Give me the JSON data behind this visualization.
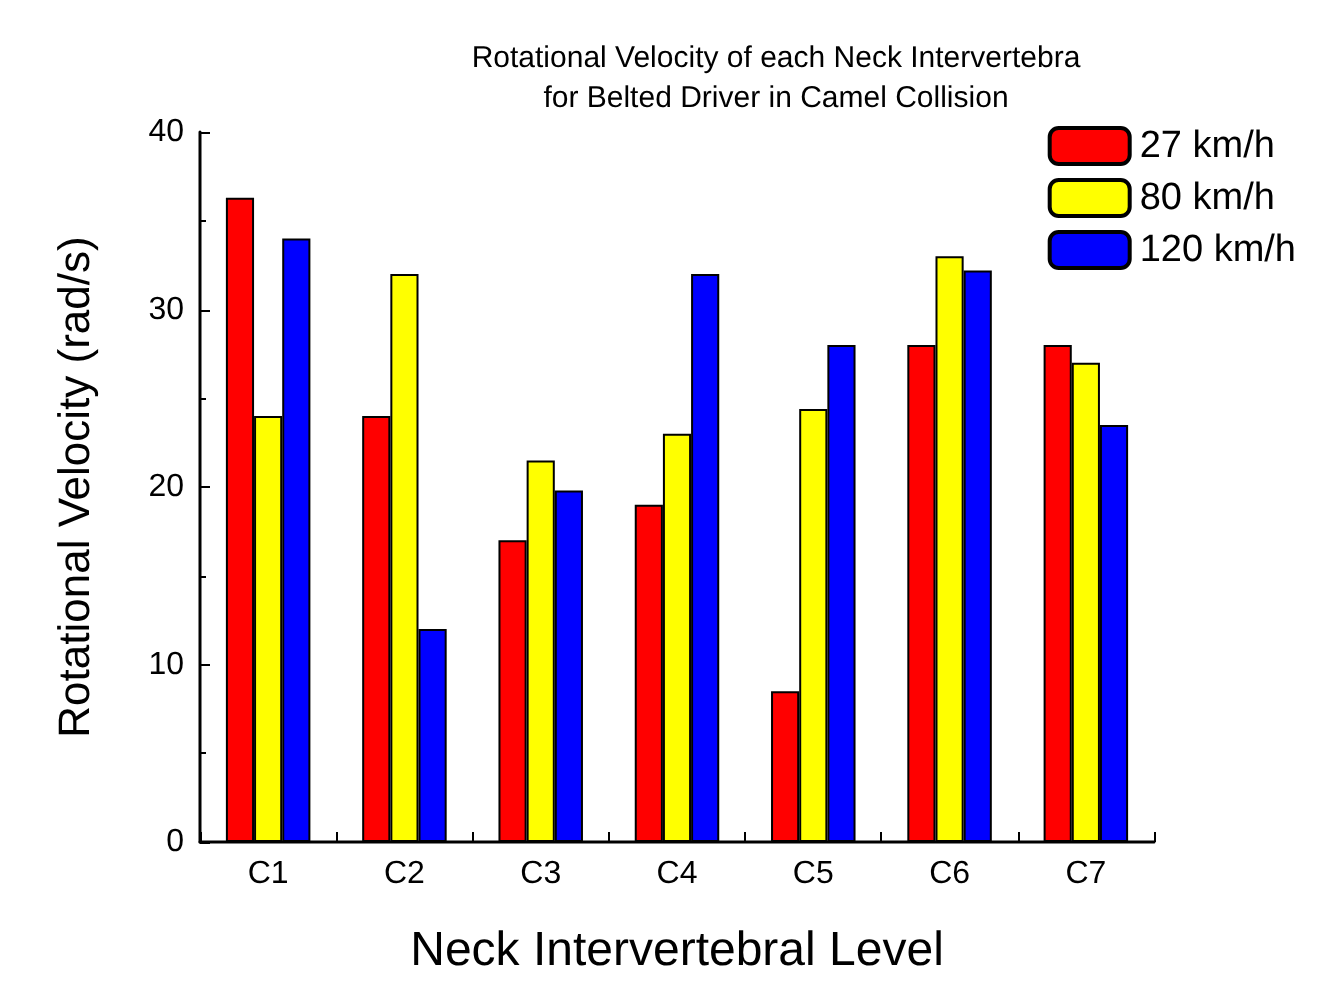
{
  "chart_data": {
    "type": "bar",
    "title": "Rotational Velocity of each Neck Intervertebra\nfor Belted Driver in Camel Collision",
    "xlabel": "Neck Intervertebral Level",
    "ylabel": "Rotational Velocity (rad/s)",
    "categories": [
      "C1",
      "C2",
      "C3",
      "C4",
      "C5",
      "C6",
      "C7"
    ],
    "series": [
      {
        "name": "27 km/h",
        "color": "#ff0000",
        "values": [
          36.3,
          24,
          17,
          19,
          8.5,
          28,
          28
        ]
      },
      {
        "name": "80 km/h",
        "color": "#ffff00",
        "values": [
          24,
          32,
          21.5,
          23,
          24.4,
          33,
          27
        ]
      },
      {
        "name": "120 km/h",
        "color": "#0000ff",
        "values": [
          34,
          12,
          19.8,
          32,
          28,
          32.2,
          23.5
        ]
      }
    ],
    "ylim": [
      0,
      40
    ],
    "yticks": [
      0,
      10,
      20,
      30,
      40
    ],
    "grid": false,
    "legend": "top right"
  }
}
